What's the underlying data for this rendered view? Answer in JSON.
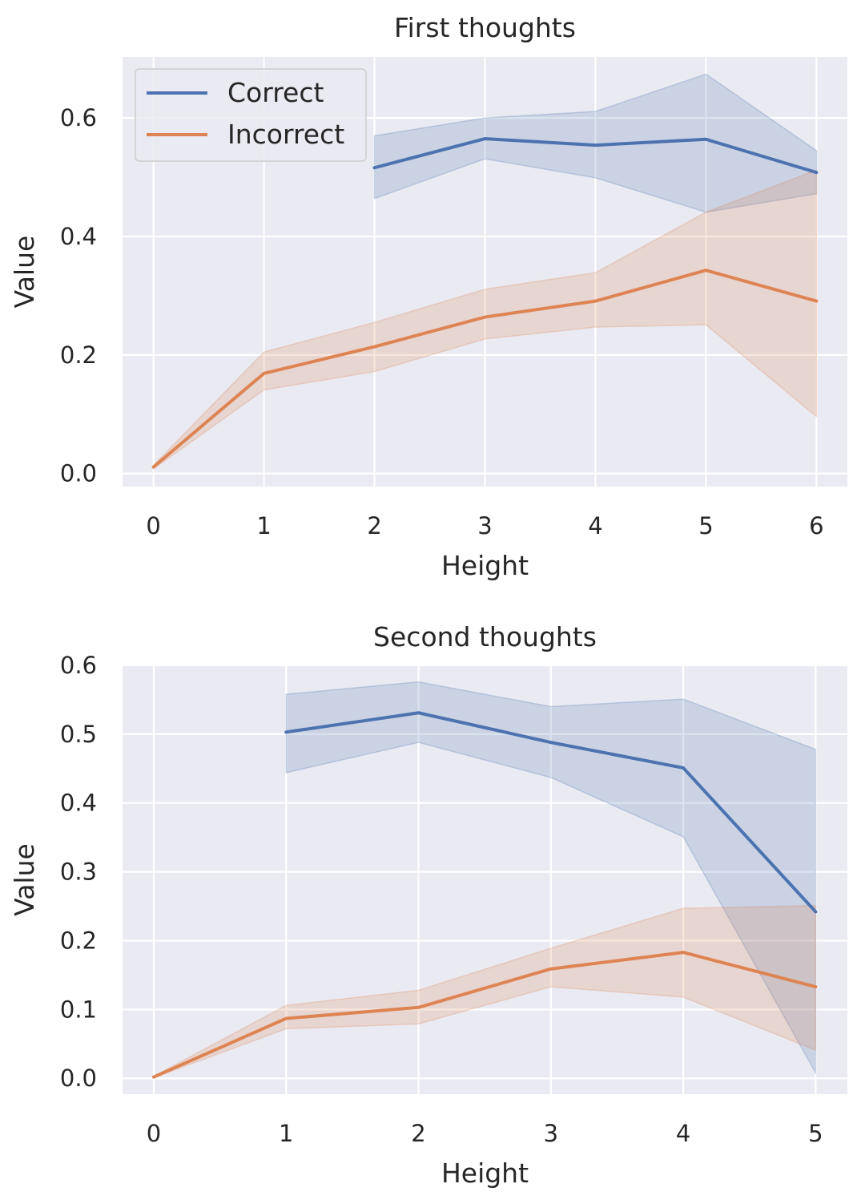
{
  "colors": {
    "Correct": "#4c72b0",
    "Incorrect": "#dd8452",
    "background": "#eaeaf2",
    "grid": "#ffffff"
  },
  "chart_data": [
    {
      "type": "line",
      "title": "First thoughts",
      "xlabel": "Height",
      "ylabel": "Value",
      "xlim": [
        -0.28,
        6.28
      ],
      "ylim": [
        -0.022,
        0.703
      ],
      "xticks": [
        0,
        1,
        2,
        3,
        4,
        5,
        6
      ],
      "yticks": [
        0.0,
        0.2,
        0.4,
        0.6
      ],
      "ytick_labels": [
        "0.0",
        "0.2",
        "0.4",
        "0.6"
      ],
      "grid": true,
      "legend": "top-left",
      "series": [
        {
          "name": "Correct",
          "x": [
            2,
            3,
            4,
            5,
            6
          ],
          "values": [
            0.516,
            0.565,
            0.554,
            0.564,
            0.508
          ],
          "lower": [
            0.464,
            0.531,
            0.499,
            0.441,
            0.472
          ],
          "upper": [
            0.57,
            0.6,
            0.611,
            0.674,
            0.545
          ]
        },
        {
          "name": "Incorrect",
          "x": [
            0,
            1,
            2,
            3,
            4,
            5,
            6
          ],
          "values": [
            0.011,
            0.169,
            0.214,
            0.264,
            0.291,
            0.343,
            0.291
          ],
          "lower": [
            0.008,
            0.141,
            0.172,
            0.227,
            0.247,
            0.251,
            0.096
          ],
          "upper": [
            0.014,
            0.205,
            0.255,
            0.311,
            0.339,
            0.441,
            0.512
          ]
        }
      ]
    },
    {
      "type": "line",
      "title": "Second thoughts",
      "xlabel": "Height",
      "ylabel": "Value",
      "xlim": [
        -0.236,
        5.24
      ],
      "ylim": [
        -0.023,
        0.6
      ],
      "xticks": [
        0,
        1,
        2,
        3,
        4,
        5
      ],
      "yticks": [
        0.0,
        0.1,
        0.2,
        0.3,
        0.4,
        0.5,
        0.6
      ],
      "ytick_labels": [
        "0.0",
        "0.1",
        "0.2",
        "0.3",
        "0.4",
        "0.5",
        "0.6"
      ],
      "grid": true,
      "series": [
        {
          "name": "Correct",
          "x": [
            1,
            2,
            3,
            4,
            5
          ],
          "values": [
            0.503,
            0.531,
            0.488,
            0.451,
            0.242
          ],
          "lower": [
            0.444,
            0.488,
            0.437,
            0.351,
            0.008
          ],
          "upper": [
            0.558,
            0.576,
            0.54,
            0.551,
            0.478
          ]
        },
        {
          "name": "Incorrect",
          "x": [
            0,
            1,
            2,
            3,
            4,
            5
          ],
          "values": [
            0.002,
            0.087,
            0.103,
            0.159,
            0.183,
            0.133
          ],
          "lower": [
            0.001,
            0.072,
            0.079,
            0.133,
            0.118,
            0.041
          ],
          "upper": [
            0.003,
            0.106,
            0.128,
            0.189,
            0.247,
            0.251
          ]
        }
      ]
    }
  ]
}
